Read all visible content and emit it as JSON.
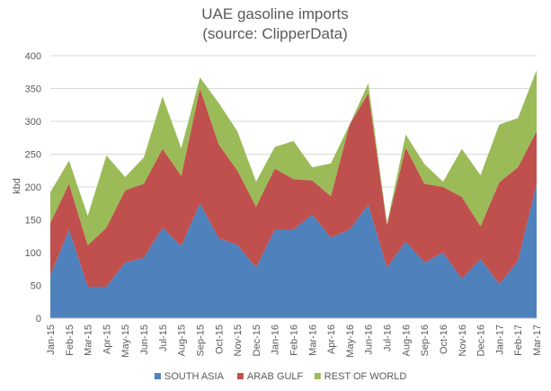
{
  "chart_data": {
    "type": "area",
    "stacked": true,
    "title": "UAE gasoline imports",
    "subtitle": "(source: ClipperData)",
    "xlabel": "",
    "ylabel": "kbd",
    "ylim": [
      0,
      400
    ],
    "yticks": [
      "0",
      "50",
      "100",
      "150",
      "200",
      "250",
      "300",
      "350",
      "400"
    ],
    "grid": true,
    "legend_position": "bottom",
    "categories": [
      "Jan-15",
      "Feb-15",
      "Mar-15",
      "Apr-15",
      "May-15",
      "Jun-15",
      "Jul-15",
      "Aug-15",
      "Sep-15",
      "Oct-15",
      "Nov-15",
      "Dec-15",
      "Jan-16",
      "Feb-16",
      "Mar-16",
      "Apr-16",
      "May-16",
      "Jun-16",
      "Jul-16",
      "Aug-16",
      "Sep-16",
      "Oct-16",
      "Nov-16",
      "Dec-16",
      "Jan-17",
      "Feb-17",
      "Mar-17"
    ],
    "tick_labels": [
      "Jan-15",
      "",
      "Feb-15",
      "",
      "Mar-15",
      "",
      "Apr-15",
      "",
      "May-15",
      "",
      "Jun-15",
      "",
      "Jul-15",
      "",
      "Aug-15",
      "",
      "Sep-15",
      "",
      "Oct-15",
      "",
      "Nov-15",
      "",
      "Dec-15",
      "",
      "Jan-16",
      "",
      "Feb-16",
      "",
      "Mar-16",
      "",
      "Apr-16",
      "",
      "May-16",
      "",
      "Jun-16",
      "",
      "Jul-16",
      "",
      "Aug-16",
      "",
      "Sep-16",
      "",
      "Oct-16",
      "",
      "Nov-16",
      "",
      "Dec-16",
      "",
      "Jan-17",
      "",
      "Feb-17",
      "",
      "Mar-17"
    ],
    "series": [
      {
        "name": "SOUTH ASIA",
        "color": "#4f81bd",
        "values": [
          65,
          135,
          48,
          48,
          85,
          92,
          138,
          110,
          175,
          122,
          112,
          77,
          135,
          135,
          158,
          123,
          135,
          173,
          77,
          117,
          85,
          100,
          60,
          90,
          52,
          87,
          205
        ]
      },
      {
        "name": "ARAB GULF",
        "color": "#c0504d",
        "values": [
          80,
          70,
          63,
          90,
          110,
          113,
          120,
          107,
          175,
          143,
          113,
          93,
          93,
          77,
          52,
          63,
          160,
          170,
          65,
          143,
          120,
          100,
          125,
          50,
          155,
          143,
          80
        ]
      },
      {
        "name": "REST OF WORLD",
        "color": "#9bbb59",
        "values": [
          47,
          35,
          45,
          110,
          20,
          40,
          80,
          42,
          17,
          63,
          60,
          38,
          33,
          58,
          20,
          50,
          0,
          15,
          2,
          20,
          30,
          8,
          73,
          78,
          88,
          75,
          93
        ]
      }
    ]
  }
}
